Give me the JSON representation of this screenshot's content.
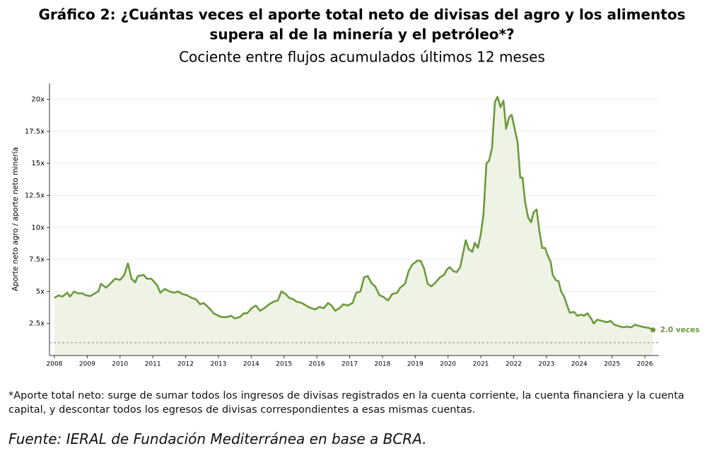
{
  "chart_data": {
    "type": "line",
    "title": "Gráfico 2: ¿Cuántas veces el aporte total neto de divisas del agro y los alimentos",
    "title_line2": "supera al de la minería y el petróleo*?",
    "subtitle": "Cociente entre flujos acumulados últimos 12 meses",
    "ylabel": "Aporte neto agro / aporte neto minería",
    "annotation": "2.0 veces",
    "footnote": "*Aporte total neto: surge de sumar todos los ingresos de divisas registrados en la cuenta corriente, la cuenta financiera y la cuenta capital, y descontar todos los egresos de divisas correspondientes a esas mismas cuentas.",
    "source": "Fuente: IERAL de Fundación Mediterránea en base a BCRA.",
    "color": "#6b9a3c",
    "fill_color": "#eef3e5",
    "grid": true,
    "reference_line": 1,
    "xlim": [
      2007.85,
      2026.43
    ],
    "xticks": [
      2008,
      2009,
      2010,
      2011,
      2012,
      2013,
      2014,
      2015,
      2016,
      2017,
      2018,
      2019,
      2020,
      2021,
      2022,
      2023,
      2024,
      2025,
      2026
    ],
    "ylim": [
      0,
      21.25
    ],
    "yticks": [
      {
        "value": 2.5,
        "label": "2.5x"
      },
      {
        "value": 5,
        "label": "5x"
      },
      {
        "value": 7.5,
        "label": "7.5x"
      },
      {
        "value": 10,
        "label": "10x"
      },
      {
        "value": 12.5,
        "label": "12.5x"
      },
      {
        "value": 15,
        "label": "15x"
      },
      {
        "value": 17.5,
        "label": "17.5x"
      },
      {
        "value": 20,
        "label": "20x"
      }
    ],
    "x": [
      2008.0,
      2008.13,
      2008.24,
      2008.39,
      2008.47,
      2008.6,
      2008.71,
      2008.86,
      2008.95,
      2009.1,
      2009.23,
      2009.34,
      2009.42,
      2009.57,
      2009.7,
      2009.85,
      2010.0,
      2010.13,
      2010.24,
      2010.35,
      2010.46,
      2010.54,
      2010.72,
      2010.82,
      2010.95,
      2011.13,
      2011.23,
      2011.36,
      2011.51,
      2011.66,
      2011.77,
      2011.9,
      2012.05,
      2012.18,
      2012.31,
      2012.44,
      2012.55,
      2012.72,
      2012.85,
      2013.0,
      2013.11,
      2013.26,
      2013.39,
      2013.5,
      2013.65,
      2013.78,
      2013.88,
      2014.01,
      2014.14,
      2014.27,
      2014.4,
      2014.55,
      2014.68,
      2014.81,
      2014.92,
      2015.05,
      2015.16,
      2015.28,
      2015.39,
      2015.54,
      2015.67,
      2015.82,
      2015.95,
      2016.08,
      2016.21,
      2016.34,
      2016.45,
      2016.56,
      2016.69,
      2016.81,
      2016.94,
      2017.09,
      2017.2,
      2017.33,
      2017.44,
      2017.55,
      2017.68,
      2017.78,
      2017.91,
      2018.02,
      2018.17,
      2018.3,
      2018.45,
      2018.54,
      2018.69,
      2018.8,
      2018.91,
      2019.06,
      2019.16,
      2019.27,
      2019.38,
      2019.49,
      2019.62,
      2019.75,
      2019.88,
      2019.96,
      2020.05,
      2020.16,
      2020.26,
      2020.37,
      2020.46,
      2020.54,
      2020.63,
      2020.74,
      2020.82,
      2020.91,
      2021.0,
      2021.08,
      2021.17,
      2021.25,
      2021.34,
      2021.43,
      2021.51,
      2021.6,
      2021.69,
      2021.77,
      2021.86,
      2021.94,
      2022.03,
      2022.12,
      2022.2,
      2022.27,
      2022.35,
      2022.44,
      2022.53,
      2022.61,
      2022.7,
      2022.78,
      2022.87,
      2022.96,
      2023.04,
      2023.13,
      2023.19,
      2023.28,
      2023.37,
      2023.45,
      2023.54,
      2023.63,
      2023.71,
      2023.84,
      2023.95,
      2024.06,
      2024.14,
      2024.25,
      2024.36,
      2024.44,
      2024.55,
      2024.7,
      2024.83,
      2024.96,
      2025.07,
      2025.2,
      2025.33,
      2025.46,
      2025.59,
      2025.69,
      2025.84,
      2026.0,
      2026.13,
      2026.25
    ],
    "values": [
      4.5,
      4.7,
      4.6,
      4.9,
      4.6,
      5.0,
      4.85,
      4.85,
      4.7,
      4.65,
      4.85,
      5.0,
      5.6,
      5.3,
      5.6,
      6.0,
      5.9,
      6.3,
      7.2,
      6.0,
      5.7,
      6.2,
      6.3,
      6.0,
      6.0,
      5.5,
      4.9,
      5.2,
      5.0,
      4.9,
      5.0,
      4.8,
      4.7,
      4.5,
      4.4,
      4.0,
      4.1,
      3.7,
      3.3,
      3.1,
      3.0,
      3.0,
      3.1,
      2.9,
      3.0,
      3.3,
      3.3,
      3.7,
      3.9,
      3.5,
      3.7,
      4.0,
      4.2,
      4.3,
      5.0,
      4.8,
      4.5,
      4.4,
      4.2,
      4.1,
      3.9,
      3.7,
      3.6,
      3.8,
      3.7,
      4.1,
      3.9,
      3.5,
      3.7,
      4.0,
      3.9,
      4.1,
      4.9,
      5.0,
      6.1,
      6.2,
      5.6,
      5.4,
      4.7,
      4.6,
      4.3,
      4.8,
      4.9,
      5.3,
      5.6,
      6.6,
      7.1,
      7.4,
      7.4,
      6.8,
      5.6,
      5.4,
      5.7,
      6.1,
      6.3,
      6.7,
      6.9,
      6.6,
      6.5,
      6.9,
      8.0,
      9.0,
      8.3,
      8.1,
      8.8,
      8.4,
      9.5,
      11.0,
      15.0,
      15.2,
      16.2,
      19.8,
      20.2,
      19.4,
      19.9,
      17.7,
      18.6,
      18.8,
      17.7,
      16.7,
      13.9,
      13.9,
      12.0,
      10.8,
      10.4,
      11.2,
      11.4,
      9.8,
      8.4,
      8.4,
      7.8,
      7.3,
      6.3,
      5.9,
      5.8,
      5.0,
      4.6,
      3.9,
      3.35,
      3.4,
      3.1,
      3.2,
      3.1,
      3.3,
      2.9,
      2.5,
      2.8,
      2.7,
      2.6,
      2.7,
      2.4,
      2.3,
      2.2,
      2.25,
      2.2,
      2.4,
      2.3,
      2.2,
      2.15,
      2.0
    ]
  }
}
